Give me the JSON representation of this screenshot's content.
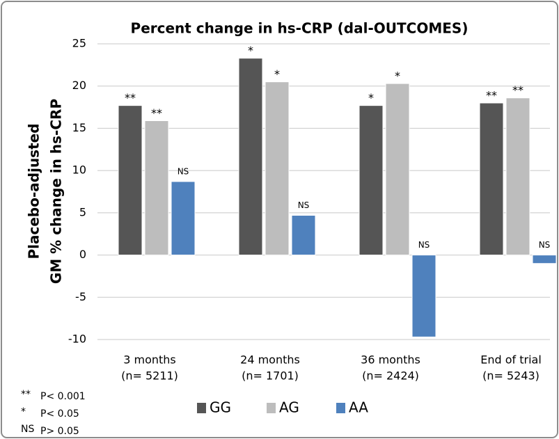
{
  "chart_data": {
    "type": "bar",
    "title": "Percent change in hs-CRP (dal-OUTCOMES)",
    "y_label": [
      "Placebo-adjusted",
      "GM % change in hs-CRP"
    ],
    "categories": [
      [
        "3 months",
        "(n= 5211)"
      ],
      [
        "24 months",
        "(n= 1701)"
      ],
      [
        "36 months",
        "(n= 2424)"
      ],
      [
        "End of trial",
        "(n= 5243)"
      ]
    ],
    "series": [
      {
        "name": "GG",
        "color": "#555555",
        "values": [
          17.7,
          23.3,
          17.7,
          18.0
        ],
        "significance": [
          "**",
          "*",
          "*",
          "**"
        ]
      },
      {
        "name": "AG",
        "color": "#bdbdbd",
        "values": [
          15.9,
          20.5,
          20.3,
          18.6
        ],
        "significance": [
          "**",
          "*",
          "*",
          "**"
        ]
      },
      {
        "name": "AA",
        "color": "#4f81bd",
        "values": [
          8.7,
          4.7,
          -9.7,
          -1.0
        ],
        "significance": [
          "NS",
          "NS",
          "NS",
          "NS"
        ]
      }
    ],
    "ylim": [
      -10,
      25
    ],
    "yticks": [
      -10,
      -5,
      0,
      5,
      10,
      15,
      20,
      25
    ],
    "grid": true,
    "notes": [
      [
        "**",
        "P< 0.001"
      ],
      [
        "*",
        "P< 0.05"
      ],
      [
        "NS",
        "P> 0.05"
      ]
    ]
  }
}
